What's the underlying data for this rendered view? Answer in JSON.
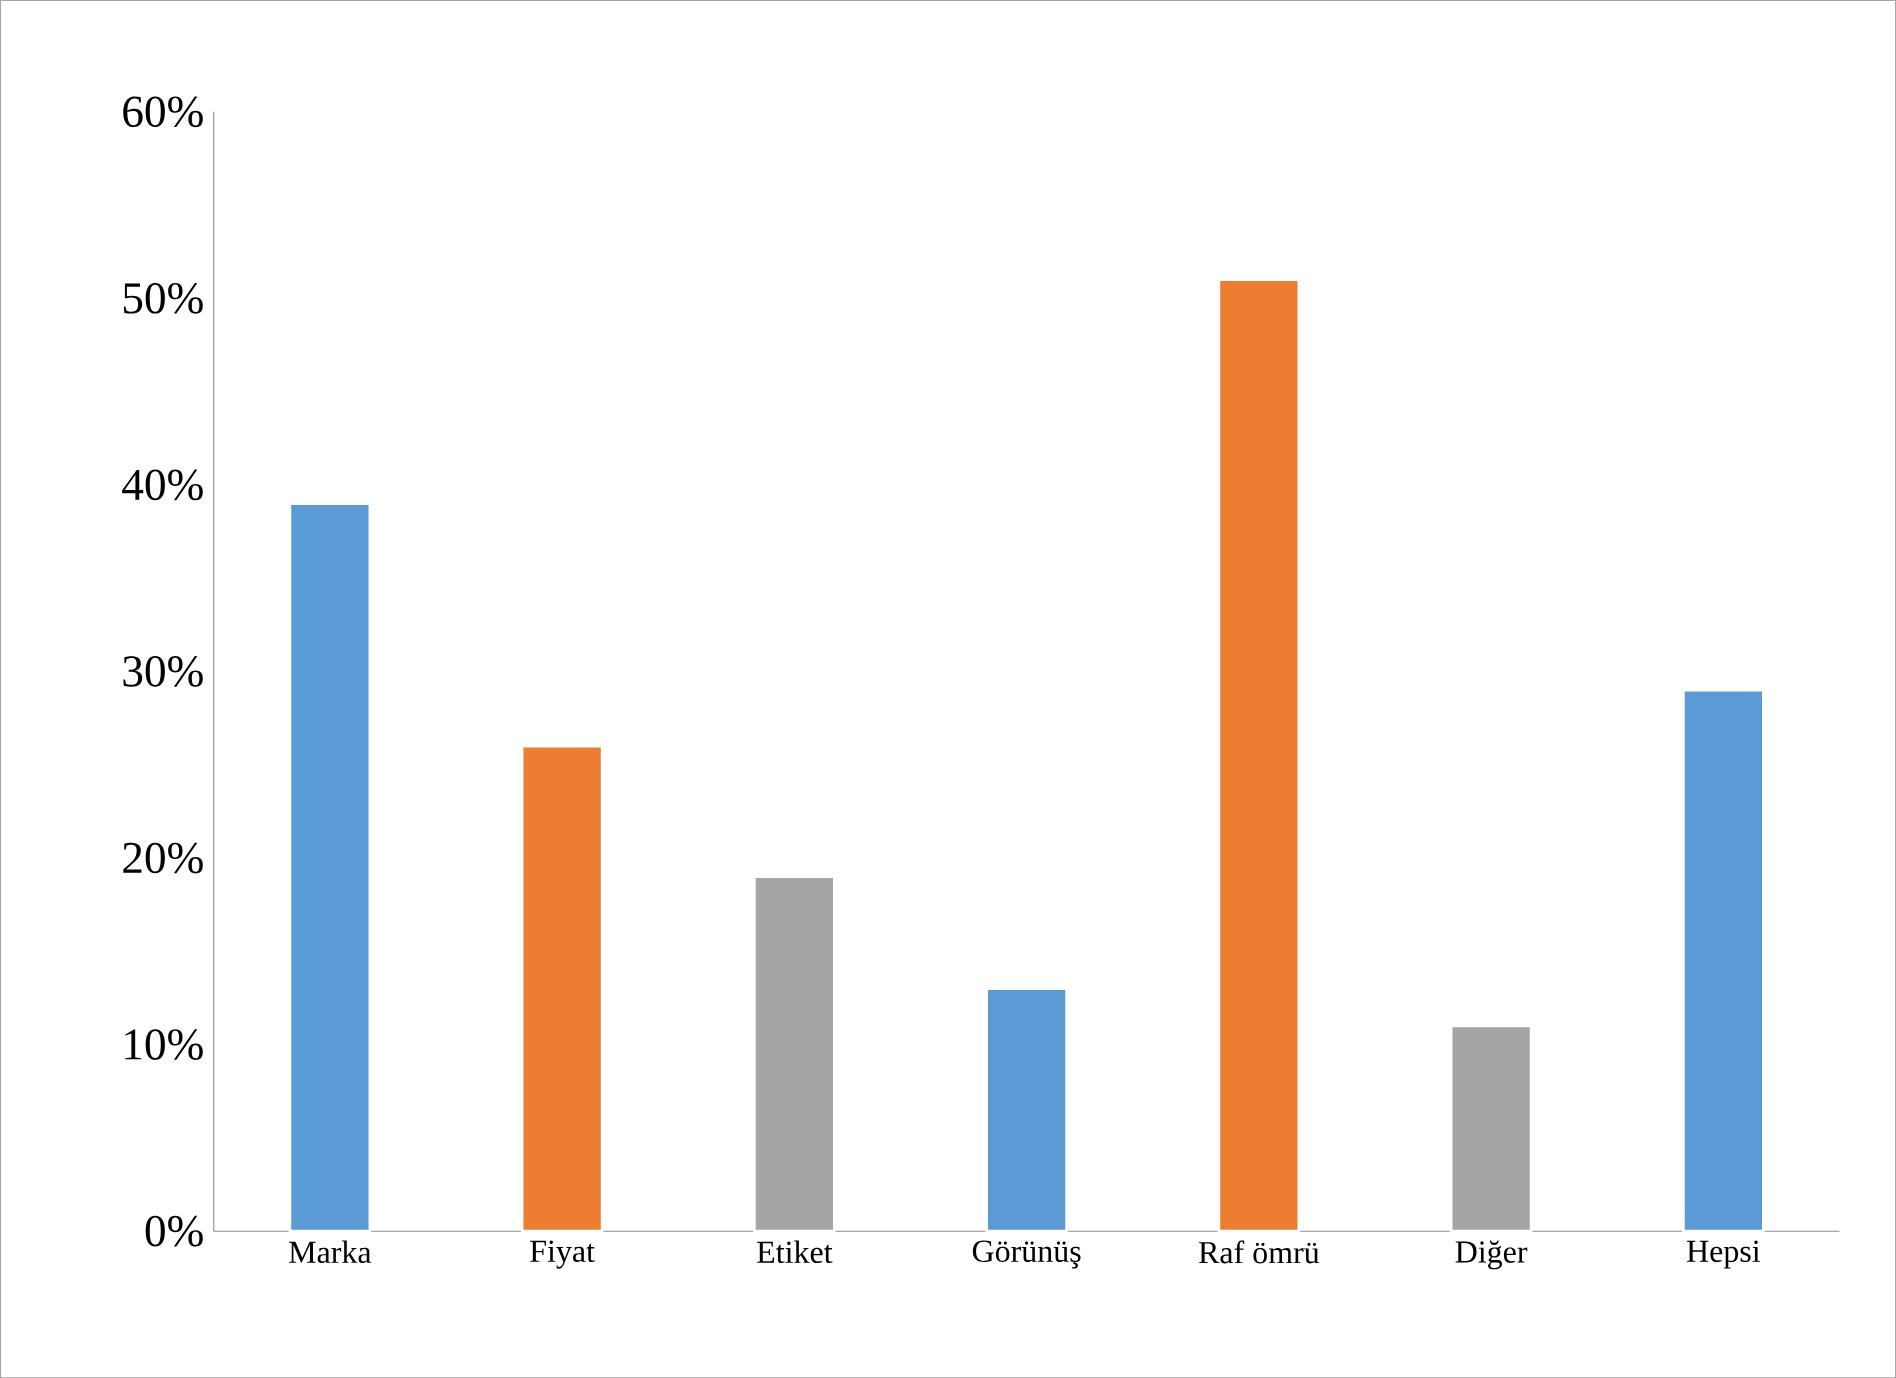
{
  "chart_data": {
    "type": "bar",
    "categories": [
      "Marka",
      "Fiyat",
      "Etiket",
      "Görünüş",
      "Raf ömrü",
      "Diğer",
      "Hepsi"
    ],
    "values": [
      39,
      26,
      19,
      13,
      51,
      11,
      29
    ],
    "colors": [
      "#5b9bd5",
      "#ed7d31",
      "#a5a5a5",
      "#5b9bd5",
      "#ed7d31",
      "#a5a5a5",
      "#5b9bd5"
    ],
    "ylim": [
      0,
      60
    ],
    "yticks": [
      {
        "value": 0,
        "label": "0%"
      },
      {
        "value": 10,
        "label": "10%"
      },
      {
        "value": 20,
        "label": "20%"
      },
      {
        "value": 30,
        "label": "30%"
      },
      {
        "value": 40,
        "label": "40%"
      },
      {
        "value": 50,
        "label": "50%"
      },
      {
        "value": 60,
        "label": "60%"
      }
    ],
    "grid": false
  }
}
